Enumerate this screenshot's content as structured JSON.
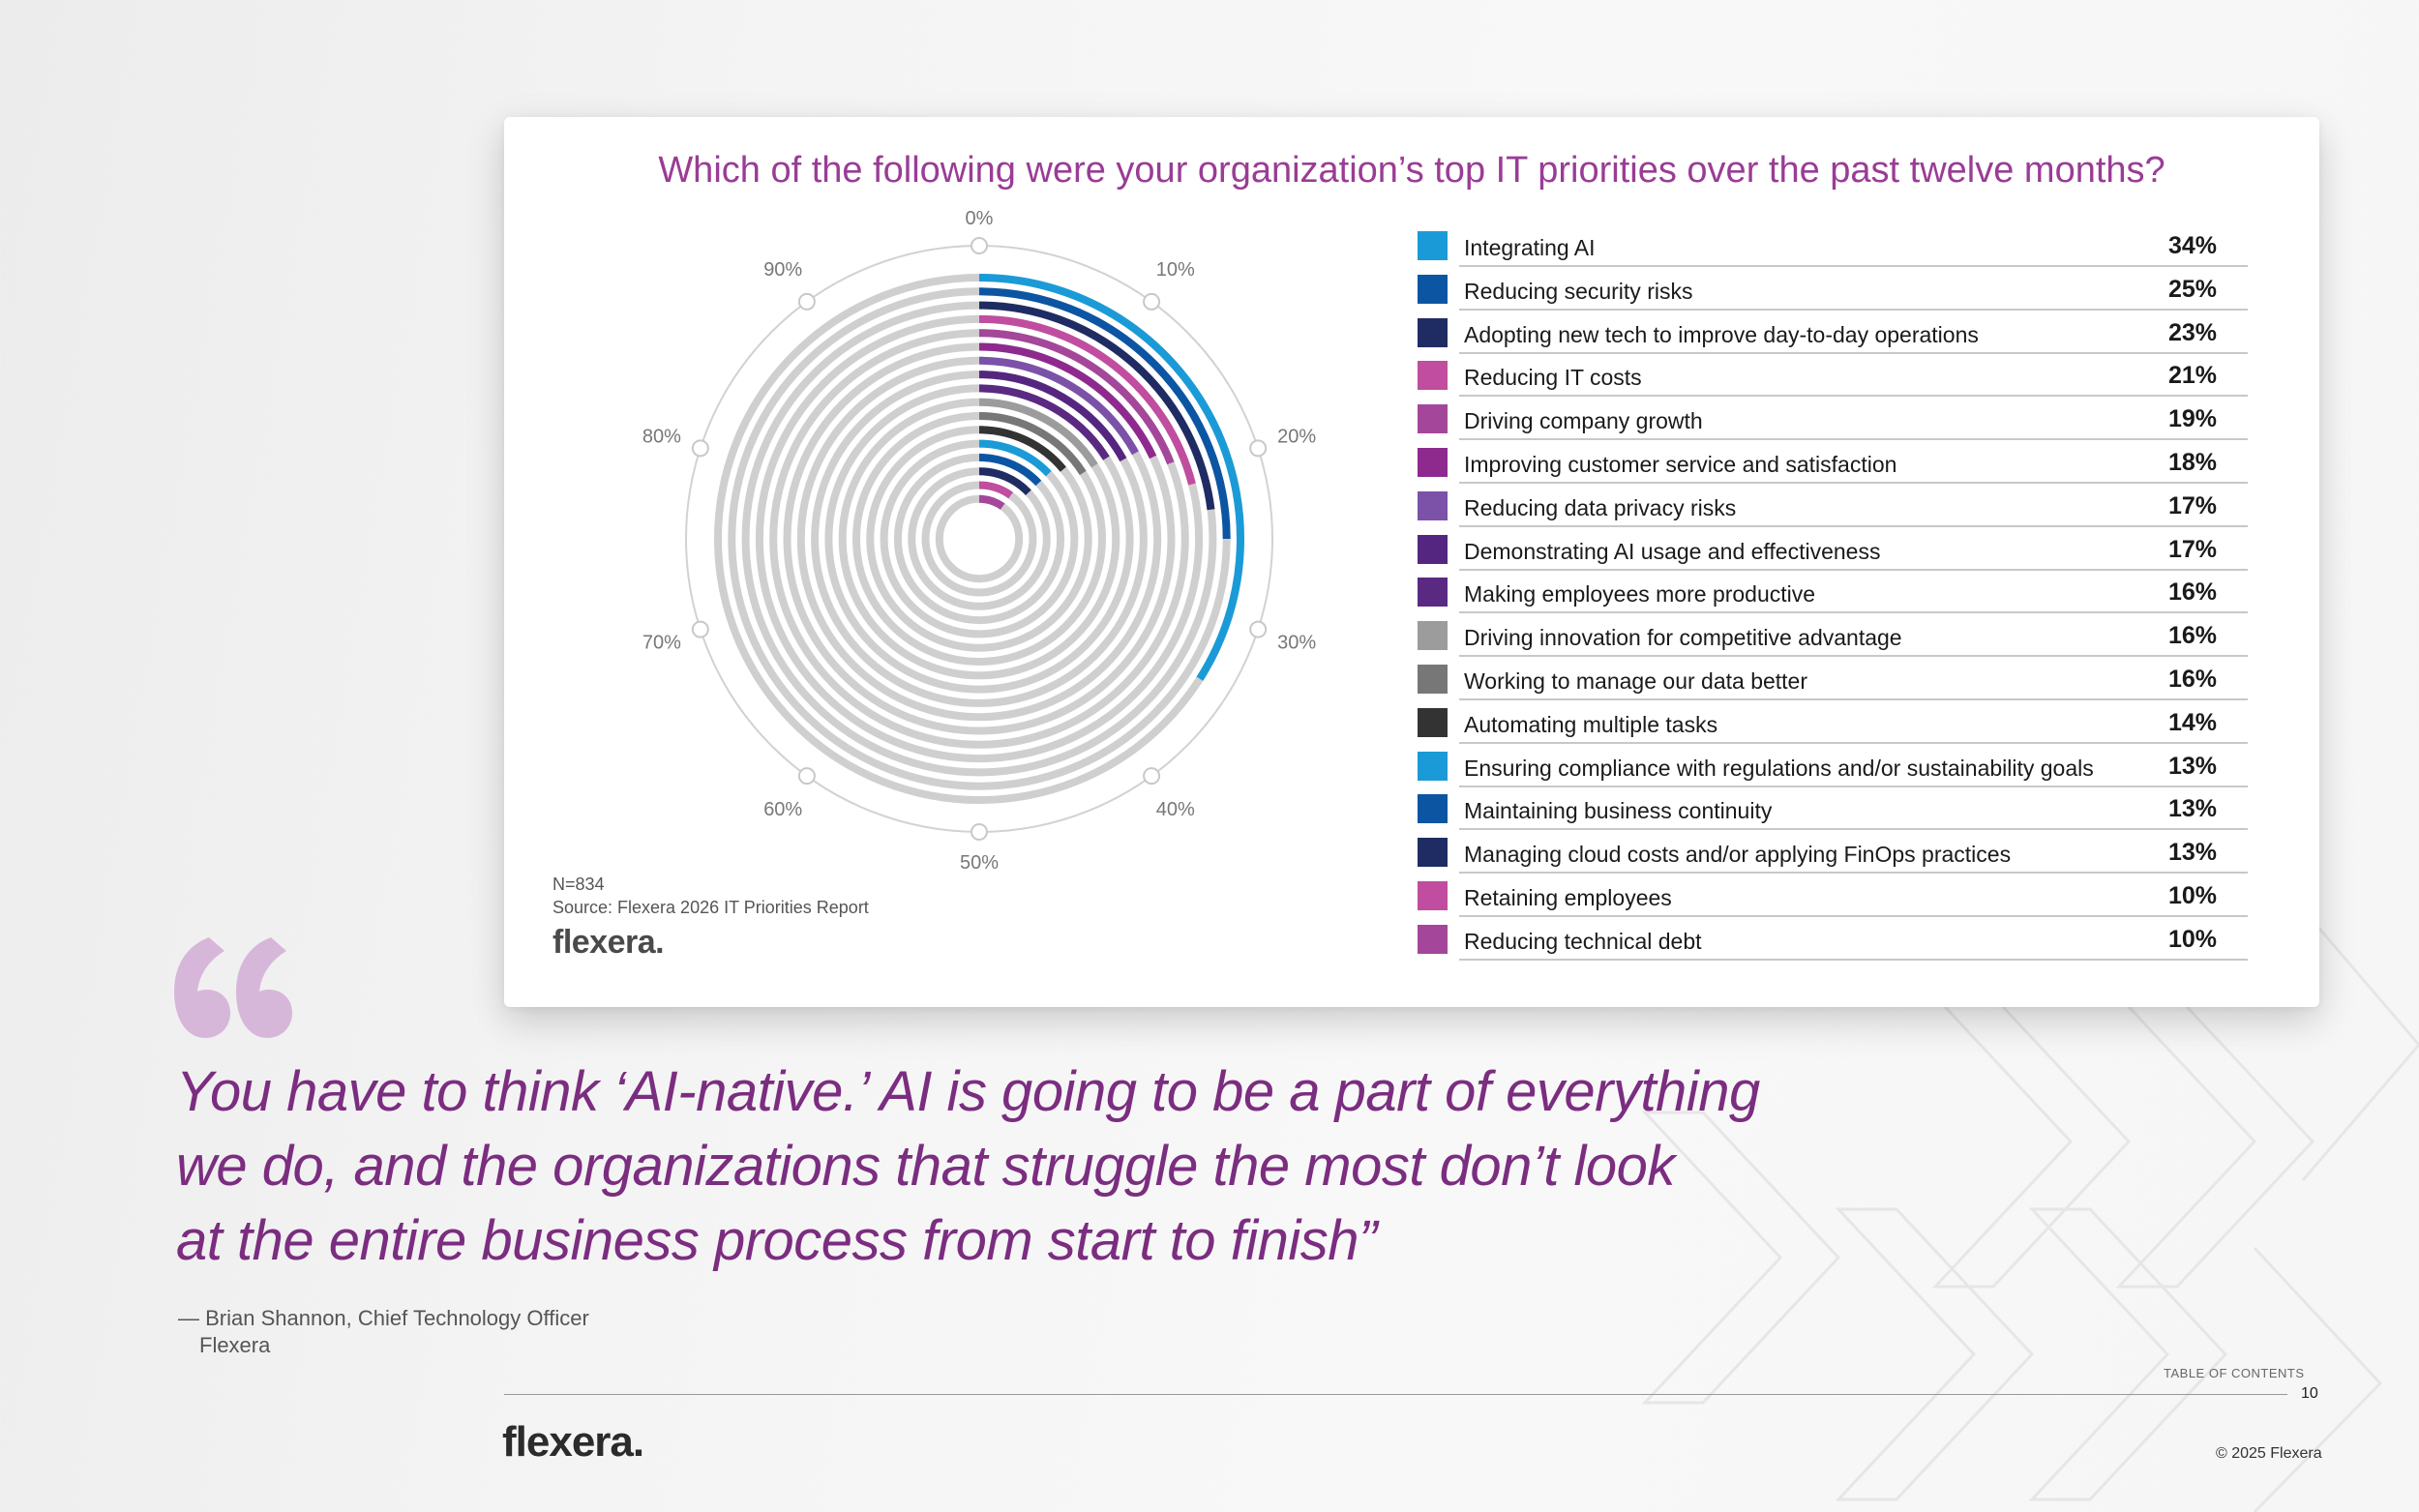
{
  "chart_data": {
    "type": "radial-bar",
    "title": "Which of the following were your organization’s top IT priorities over the past twelve months?",
    "tick_labels": [
      "0%",
      "10%",
      "20%",
      "30%",
      "40%",
      "50%",
      "60%",
      "70%",
      "80%",
      "90%"
    ],
    "categories": [
      "Integrating AI",
      "Reducing security risks",
      "Adopting new tech to improve day-to-day operations",
      "Reducing IT costs",
      "Driving company growth",
      "Improving customer service and satisfaction",
      "Reducing data privacy risks",
      "Demonstrating AI usage and effectiveness",
      "Making employees more productive",
      "Driving innovation for competitive advantage",
      "Working to manage our data better",
      "Automating multiple tasks",
      "Ensuring compliance with regulations and/or sustainability goals",
      "Maintaining business continuity",
      "Managing cloud costs and/or applying FinOps practices",
      "Retaining employees",
      "Reducing technical debt"
    ],
    "values": [
      34,
      25,
      23,
      21,
      19,
      18,
      17,
      17,
      16,
      16,
      16,
      14,
      13,
      13,
      13,
      10,
      10
    ],
    "value_labels": [
      "34%",
      "25%",
      "23%",
      "21%",
      "19%",
      "18%",
      "17%",
      "17%",
      "16%",
      "16%",
      "16%",
      "14%",
      "13%",
      "13%",
      "13%",
      "10%",
      "10%"
    ],
    "colors": [
      "#1a9bd7",
      "#0c55a3",
      "#1f2c63",
      "#c04d9f",
      "#a4479a",
      "#8e2a8e",
      "#7b52a8",
      "#55267f",
      "#5a2a82",
      "#9c9c9c",
      "#777777",
      "#333333",
      "#1a9bd7",
      "#0c55a3",
      "#1f2c63",
      "#c04d9f",
      "#a4479a"
    ],
    "track_color": "#cfcfcf",
    "ylim": [
      0,
      100
    ]
  },
  "note": {
    "n": "N=834",
    "source": "Source: Flexera 2026 IT Priorities Report"
  },
  "card_logo": "flexera",
  "quote": {
    "line1": "You have to think ‘AI-native.’ AI is going to be a part of everything",
    "line2": "we do, and the organizations that struggle the most don’t look",
    "line3": "at the entire business process from start to finish”",
    "attribution": "— Brian Shannon, Chief Technology Officer",
    "company": "Flexera",
    "mark_color": "#d7b7d9"
  },
  "footer": {
    "toc": "TABLE OF CONTENTS",
    "page": "10",
    "logo": "flexera",
    "copyright": "© 2025 Flexera"
  }
}
